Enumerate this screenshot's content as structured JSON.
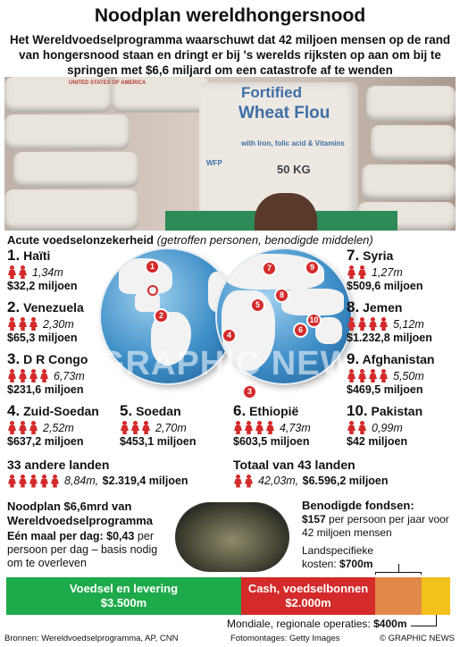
{
  "title": "Noodplan wereldhongersnood",
  "subtitle": "Het Wereldvoedselprogramma waarschuwt dat 42 miljoen mensen op de rand van hongersnood staan en dringt er bij 's werelds rijksten op aan om bij te springen met $6,6 miljard om een catastrofe af te wenden",
  "photo": {
    "sack_line1": "Fortified",
    "sack_line2": "Wheat Flou",
    "sack_line3": "with Iron, folic acid & Vitamins",
    "sack_weight": "50 KG",
    "sack_logo": "WFP",
    "bg_sack_text": "UNITED STATES OF AMERICA"
  },
  "section_head": {
    "bold": "Acute voedselonzekerheid",
    "italic": "(getroffen personen, benodigde middelen)"
  },
  "colors": {
    "red": "#d42a2a",
    "green": "#1daa4a",
    "orange": "#e2894a",
    "yellow": "#f3c11c",
    "ocean": "#3f8fc8"
  },
  "countries": [
    {
      "num": "1.",
      "name": "Haïti",
      "people": "1,34m",
      "money": "$32,2 miljoen"
    },
    {
      "num": "2.",
      "name": "Venezuela",
      "people": "2,30m",
      "money": "$65,3 miljoen"
    },
    {
      "num": "3.",
      "name": "D R Congo",
      "people": "6,73m",
      "money": "$231,6 miljoen"
    },
    {
      "num": "4.",
      "name": "Zuid-Soedan",
      "people": "2,52m",
      "money": "$637,2 miljoen"
    },
    {
      "num": "5.",
      "name": "Soedan",
      "people": "2,70m",
      "money": "$453,1 miljoen"
    },
    {
      "num": "6.",
      "name": "Ethiopië",
      "people": "4,73m",
      "money": "$603,5 miljoen"
    },
    {
      "num": "7.",
      "name": "Syria",
      "people": "1,27m",
      "money": "$509,6 miljoen"
    },
    {
      "num": "8.",
      "name": "Jemen",
      "people": "5,12m",
      "money": "$1.232,8 miljoen"
    },
    {
      "num": "9.",
      "name": "Afghanistan",
      "people": "5,50m",
      "money": "$469,5 miljoen"
    },
    {
      "num": "10.",
      "name": "Pakistan",
      "people": "0,99m",
      "money": "$42 miljoen"
    }
  ],
  "other": {
    "label": "33 andere landen",
    "people": "8,84m,",
    "money": "$2.319,4 miljoen"
  },
  "total": {
    "label": "Totaal van 43 landen",
    "people": "42,03m,",
    "money": "$6.596,2 miljoen"
  },
  "markers": [
    "1",
    "2",
    "3",
    "4",
    "5",
    "6",
    "7",
    "8",
    "9",
    "10"
  ],
  "watermark": "GRAPHIC NEWS",
  "plan": {
    "title_line1": "Noodplan $6,6mrd van",
    "title_line2": "Wereldvoedselprogramma",
    "meal_bold": "Eén maal per dag: $0,43",
    "meal_text": "per persoon per dag – basis nodig om te overleven"
  },
  "needs": {
    "title": "Benodigde fondsen:",
    "amount": "$157",
    "text": "per persoon per jaar voor 42 miljoen mensen",
    "country_costs_label": "Landspecifieke kosten:",
    "country_costs_value": "$700m"
  },
  "bars": {
    "food_label": "Voedsel en levering",
    "food_value": "$3.500m",
    "cash_label": "Cash, voedselbonnen",
    "cash_value": "$2.000m",
    "global_label": "Mondiale, regionale operaties:",
    "global_value": "$400m"
  },
  "footer": {
    "sources": "Bronnen: Wereldvoedselprogramma, AP, CNN",
    "photos": "Fotomontages: Getty Images",
    "credit": "© GRAPHIC NEWS"
  }
}
